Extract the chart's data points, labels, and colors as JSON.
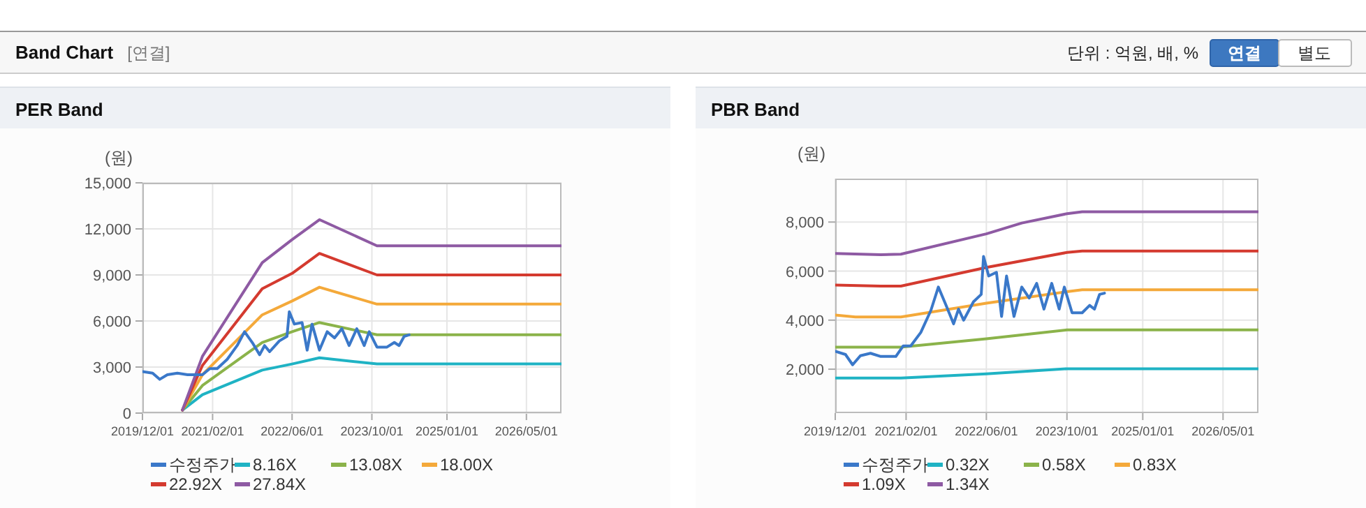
{
  "chart_data": [
    {
      "type": "other",
      "title": "Band Chart",
      "annotations": [
        "[연결]",
        "단위 : 억원, 배, %",
        "연결",
        "별도"
      ]
    },
    {
      "type": "line",
      "title": "PER Band",
      "ylabel": "(원)",
      "grid": true,
      "legend": "bottom",
      "xlim": [
        "2019-12-01",
        "2026-12-01"
      ],
      "xticks": [
        {
          "value": "2019-12-01",
          "label": "2019/12/01"
        },
        {
          "value": "2021-02-01",
          "label": "2021/02/01"
        },
        {
          "value": "2022-06-01",
          "label": "2022/06/01"
        },
        {
          "value": "2023-10-01",
          "label": "2023/10/01"
        },
        {
          "value": "2025-01-01",
          "label": "2025/01/01"
        },
        {
          "value": "2026-05-01",
          "label": "2026/05/01"
        }
      ],
      "ylim": [
        0,
        15000
      ],
      "yticks": [
        0,
        {
          "value": 3000,
          "label": "3,000"
        },
        {
          "value": 6000,
          "label": "6,000"
        },
        {
          "value": 9000,
          "label": "9,000"
        },
        {
          "value": 12000,
          "label": "12,000"
        },
        {
          "value": 15000,
          "label": "15,000"
        }
      ],
      "series": [
        {
          "name": "수정주가",
          "color": "#3a78c9",
          "x": [
            "2019-12-01",
            "2020-02-01",
            "2020-03-15",
            "2020-05-01",
            "2020-07-01",
            "2020-09-01",
            "2020-12-01",
            "2021-01-15",
            "2021-03-01",
            "2021-05-01",
            "2021-07-01",
            "2021-08-15",
            "2021-10-01",
            "2021-11-15",
            "2021-12-15",
            "2022-01-15",
            "2022-03-15",
            "2022-05-01",
            "2022-05-15",
            "2022-06-15",
            "2022-08-01",
            "2022-09-01",
            "2022-10-01",
            "2022-11-15",
            "2023-01-01",
            "2023-02-15",
            "2023-04-01",
            "2023-05-15",
            "2023-07-01",
            "2023-08-15",
            "2023-09-15",
            "2023-11-01",
            "2024-01-01",
            "2024-02-15",
            "2024-03-15",
            "2024-04-15",
            "2024-05-15"
          ],
          "values": [
            2700,
            2600,
            2200,
            2500,
            2600,
            2500,
            2500,
            2900,
            2900,
            3500,
            4400,
            5300,
            4600,
            3800,
            4400,
            4000,
            4700,
            5000,
            6600,
            5800,
            5900,
            4100,
            5800,
            4100,
            5300,
            4900,
            5500,
            4400,
            5500,
            4400,
            5300,
            4300,
            4300,
            4600,
            4400,
            5000,
            5100
          ]
        },
        {
          "name": "8.16X",
          "color": "#1fb3c4",
          "x": [
            "2020-08-01",
            "2020-12-01",
            "2021-12-01",
            "2022-06-01",
            "2022-11-15",
            "2023-11-01",
            "2026-12-01"
          ],
          "values": [
            200,
            1200,
            2800,
            3200,
            3600,
            3200,
            3200
          ]
        },
        {
          "name": "13.08X",
          "color": "#8bb34a",
          "x": [
            "2020-08-01",
            "2020-12-01",
            "2021-12-01",
            "2022-06-01",
            "2022-11-15",
            "2023-11-01",
            "2026-12-01"
          ],
          "values": [
            200,
            1800,
            4600,
            5300,
            5900,
            5100,
            5100
          ]
        },
        {
          "name": "18.00X",
          "color": "#f4a93a",
          "x": [
            "2020-08-01",
            "2020-12-01",
            "2021-12-01",
            "2022-06-01",
            "2022-11-15",
            "2023-11-01",
            "2026-12-01"
          ],
          "values": [
            200,
            2500,
            6400,
            7300,
            8200,
            7100,
            7100
          ]
        },
        {
          "name": "22.92X",
          "color": "#d43a2f",
          "x": [
            "2020-08-01",
            "2020-12-01",
            "2021-12-01",
            "2022-06-01",
            "2022-11-15",
            "2023-11-01",
            "2026-12-01"
          ],
          "values": [
            200,
            3100,
            8100,
            9100,
            10400,
            9000,
            9000
          ]
        },
        {
          "name": "27.84X",
          "color": "#8e5aa3",
          "x": [
            "2020-08-01",
            "2020-12-01",
            "2021-12-01",
            "2022-06-01",
            "2022-11-15",
            "2023-11-01",
            "2026-12-01"
          ],
          "values": [
            200,
            3700,
            9800,
            11300,
            12600,
            10900,
            10900
          ]
        }
      ]
    },
    {
      "type": "line",
      "title": "PBR Band",
      "ylabel": "(원)",
      "grid": true,
      "legend": "bottom",
      "xlim": [
        "2019-12-01",
        "2026-12-01"
      ],
      "xticks": [
        {
          "value": "2019-12-01",
          "label": "2019/12/01"
        },
        {
          "value": "2021-02-01",
          "label": "2021/02/01"
        },
        {
          "value": "2022-06-01",
          "label": "2022/06/01"
        },
        {
          "value": "2023-10-01",
          "label": "2023/10/01"
        },
        {
          "value": "2025-01-01",
          "label": "2025/01/01"
        },
        {
          "value": "2026-05-01",
          "label": "2026/05/01"
        }
      ],
      "ylim": [
        210,
        9770
      ],
      "yticks": [
        {
          "value": 2000,
          "label": "2,000"
        },
        {
          "value": 4000,
          "label": "4,000"
        },
        {
          "value": 6000,
          "label": "6,000"
        },
        {
          "value": 8000,
          "label": "8,000"
        }
      ],
      "series": [
        {
          "name": "수정주가",
          "color": "#3a78c9",
          "x": [
            "2019-12-01",
            "2020-02-01",
            "2020-03-15",
            "2020-05-01",
            "2020-07-01",
            "2020-09-01",
            "2020-12-01",
            "2021-01-15",
            "2021-03-01",
            "2021-05-01",
            "2021-07-01",
            "2021-08-15",
            "2021-10-01",
            "2021-11-15",
            "2021-12-15",
            "2022-01-15",
            "2022-03-15",
            "2022-05-01",
            "2022-05-15",
            "2022-06-15",
            "2022-08-01",
            "2022-09-01",
            "2022-10-01",
            "2022-11-15",
            "2023-01-01",
            "2023-02-15",
            "2023-04-01",
            "2023-05-15",
            "2023-07-01",
            "2023-08-15",
            "2023-09-15",
            "2023-11-01",
            "2024-01-01",
            "2024-02-15",
            "2024-03-15",
            "2024-04-15",
            "2024-05-15"
          ],
          "values": [
            2730,
            2600,
            2180,
            2550,
            2650,
            2520,
            2520,
            2950,
            2950,
            3500,
            4400,
            5350,
            4600,
            3850,
            4450,
            4000,
            4750,
            5050,
            6600,
            5800,
            5950,
            4150,
            5800,
            4150,
            5350,
            4900,
            5500,
            4450,
            5500,
            4450,
            5350,
            4300,
            4300,
            4600,
            4450,
            5050,
            5100
          ]
        },
        {
          "name": "0.32X",
          "color": "#1fb3c4",
          "x": [
            "2019-12-01",
            "2021-01-01",
            "2022-06-01",
            "2023-10-01",
            "2026-12-01"
          ],
          "values": [
            1640,
            1640,
            1810,
            2020,
            2020
          ]
        },
        {
          "name": "0.58X",
          "color": "#8bb34a",
          "x": [
            "2019-12-01",
            "2021-01-01",
            "2022-06-01",
            "2023-10-01",
            "2026-12-01"
          ],
          "values": [
            2900,
            2900,
            3240,
            3600,
            3600
          ]
        },
        {
          "name": "0.83X",
          "color": "#f4a93a",
          "x": [
            "2019-12-01",
            "2020-04-01",
            "2021-01-01",
            "2022-06-01",
            "2023-10-01",
            "2024-01-01",
            "2026-12-01"
          ],
          "values": [
            4210,
            4130,
            4130,
            4690,
            5160,
            5240,
            5240
          ]
        },
        {
          "name": "1.09X",
          "color": "#d43a2f",
          "x": [
            "2019-12-01",
            "2020-09-01",
            "2021-01-01",
            "2022-06-01",
            "2023-10-01",
            "2024-01-01",
            "2026-12-01"
          ],
          "values": [
            5430,
            5390,
            5390,
            6150,
            6760,
            6820,
            6820
          ]
        },
        {
          "name": "1.34X",
          "color": "#8e5aa3",
          "x": [
            "2019-12-01",
            "2020-09-01",
            "2021-01-01",
            "2022-06-01",
            "2023-01-01",
            "2023-10-01",
            "2024-01-01",
            "2026-12-01"
          ],
          "values": [
            6720,
            6670,
            6690,
            7520,
            7960,
            8340,
            8420,
            8420
          ]
        }
      ]
    }
  ]
}
